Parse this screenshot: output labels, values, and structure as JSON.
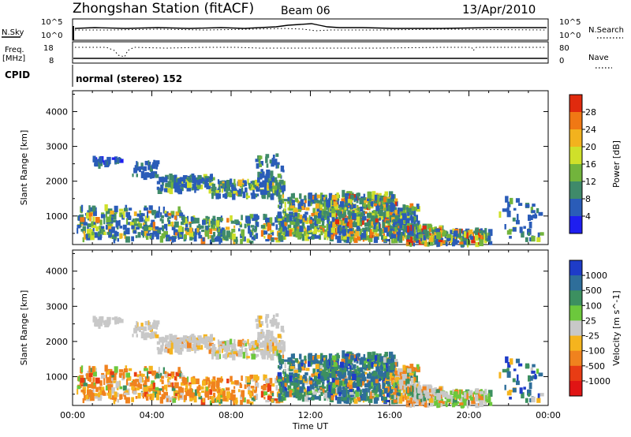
{
  "header": {
    "station": "Zhongshan Station (fitACF)",
    "beam": "Beam 06",
    "date": "13/Apr/2010"
  },
  "status_panel": {
    "nsky_label": "N.Sky",
    "nsearch_label": "N.Search",
    "nsky_ticks": [
      "10^5",
      "10^0"
    ],
    "nsearch_ticks": [
      "10^5",
      "10^0"
    ],
    "freq_label_1": "Freq.",
    "freq_label_2": "[MHz]",
    "freq_ticks": [
      "18",
      "8"
    ],
    "nave_label": "Nave",
    "nave_ticks": [
      "80",
      "0"
    ],
    "cpid_label": "CPID",
    "cpid_text": "normal (stereo) 152"
  },
  "chart_data": [
    {
      "type": "heatmap",
      "name": "power",
      "ylabel": "Slant Range [km]",
      "xlabel": "",
      "yticks": [
        "1000",
        "2000",
        "3000",
        "4000"
      ],
      "ylim": [
        180,
        4600
      ],
      "colorbar": {
        "label": "Power [dB]",
        "ticks": [
          "4",
          "8",
          "12",
          "16",
          "20",
          "24",
          "28"
        ],
        "colors": [
          "#1e1ef0",
          "#2a5cb8",
          "#3f8a6a",
          "#72b43c",
          "#cfe02a",
          "#f2b21e",
          "#f07814",
          "#e02a0e"
        ]
      }
    },
    {
      "type": "heatmap",
      "name": "velocity",
      "ylabel": "Slant Range [km]",
      "xlabel": "Time UT",
      "xticks": [
        "00:00",
        "04:00",
        "08:00",
        "12:00",
        "16:00",
        "20:00",
        "00:00"
      ],
      "yticks": [
        "1000",
        "2000",
        "3000",
        "4000"
      ],
      "ylim": [
        180,
        4600
      ],
      "colorbar": {
        "label": "Velocity [m s^-1]",
        "ticks": [
          "1000",
          "500",
          "100",
          "25",
          "-25",
          "-100",
          "-500",
          "-1000"
        ],
        "colors": [
          "#1e3cc8",
          "#2e6e9a",
          "#3c9060",
          "#6cc83c",
          "#c8c8c8",
          "#f5b41e",
          "#f0821e",
          "#e83c14",
          "#e01414"
        ]
      }
    }
  ]
}
